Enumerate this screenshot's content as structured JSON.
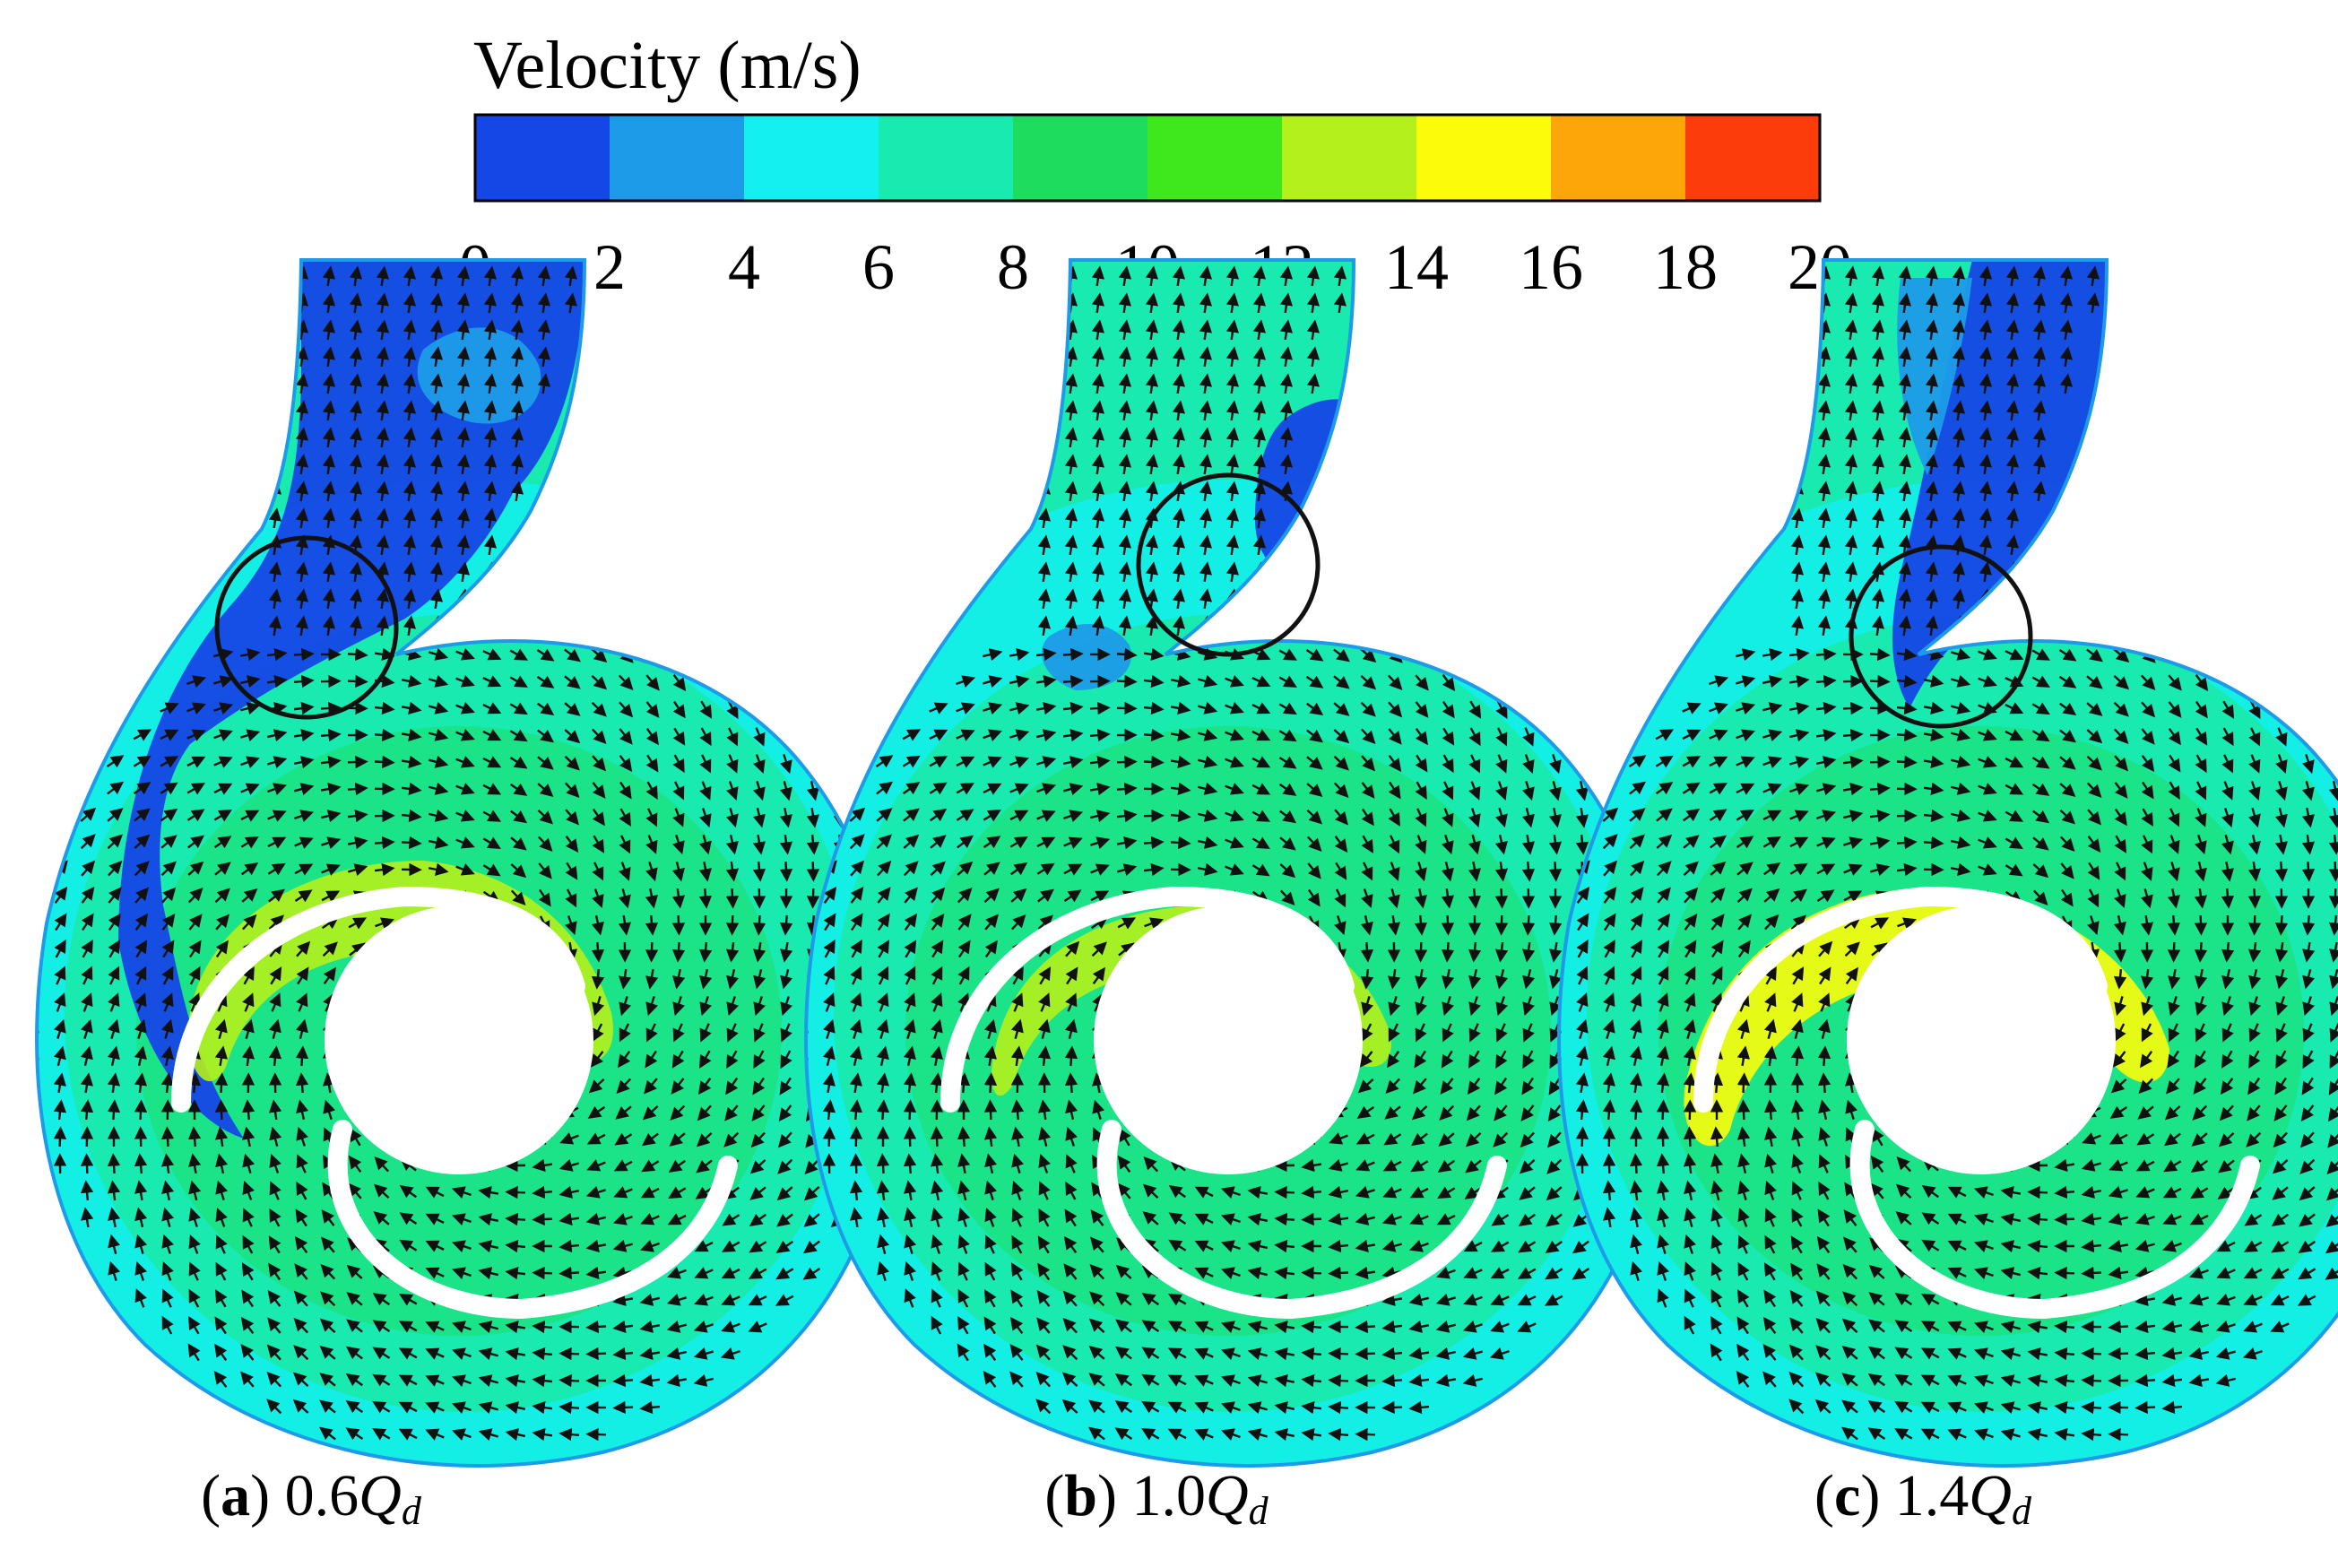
{
  "colorbar": {
    "title": "Velocity (m/s)",
    "ticks": [
      "0",
      "2",
      "4",
      "6",
      "8",
      "10",
      "12",
      "14",
      "16",
      "18",
      "20"
    ],
    "colors": [
      "#1546e6",
      "#1e9be8",
      "#14f0f0",
      "#18eab0",
      "#1edc5e",
      "#3ee81c",
      "#b4f01c",
      "#fcfc0a",
      "#fca60a",
      "#fc3c0a"
    ]
  },
  "field_colors": {
    "base": "#18eab0",
    "cyan": "#14f0f0",
    "blue": "#1546e6",
    "light_blue": "#1e9be8",
    "green": "#1edc5e",
    "yellow_green": "#b4f01c",
    "yellow": "#fcfc0a",
    "orange": "#fca60a",
    "arrow": "#111111",
    "circle": "#111111",
    "blade": "#ffffff"
  },
  "panels": [
    {
      "letter": "a",
      "flow": "0.6",
      "symbol": "Q",
      "sub": "d"
    },
    {
      "letter": "b",
      "flow": "1.0",
      "symbol": "Q",
      "sub": "d"
    },
    {
      "letter": "c",
      "flow": "1.4",
      "symbol": "Q",
      "sub": "d"
    }
  ]
}
